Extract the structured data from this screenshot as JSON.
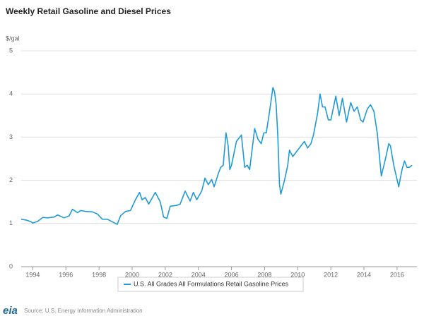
{
  "chart_data": {
    "type": "line",
    "title": "Weekly Retail Gasoline and Diesel Prices",
    "y_label": "$/gal",
    "source": "Source: U.S. Energy Information Administration",
    "logo": "eia",
    "grid": true,
    "xlim": [
      1993.3,
      2017.2
    ],
    "ylim": [
      0,
      5
    ],
    "xticks": [
      1994,
      1996,
      1998,
      2000,
      2002,
      2004,
      2006,
      2008,
      2010,
      2012,
      2014,
      2016
    ],
    "yticks": [
      0,
      1,
      2,
      3,
      4,
      5
    ],
    "x": [
      1993.3,
      1993.6,
      1993.9,
      1994.0,
      1994.3,
      1994.6,
      1994.9,
      1995.3,
      1995.5,
      1995.9,
      1996.2,
      1996.4,
      1996.7,
      1996.9,
      1997.2,
      1997.6,
      1997.9,
      1998.2,
      1998.5,
      1998.9,
      1999.1,
      1999.3,
      1999.6,
      1999.9,
      2000.2,
      2000.45,
      2000.6,
      2000.8,
      2001.0,
      2001.3,
      2001.4,
      2001.7,
      2001.9,
      2002.1,
      2002.3,
      2002.7,
      2002.9,
      2003.2,
      2003.5,
      2003.7,
      2003.9,
      2004.2,
      2004.4,
      2004.6,
      2004.8,
      2004.95,
      2005.2,
      2005.35,
      2005.5,
      2005.67,
      2005.8,
      2005.9,
      2006.0,
      2006.3,
      2006.6,
      2006.8,
      2006.95,
      2007.1,
      2007.4,
      2007.6,
      2007.8,
      2007.95,
      2008.1,
      2008.3,
      2008.5,
      2008.6,
      2008.7,
      2008.8,
      2008.9,
      2008.98,
      2009.2,
      2009.4,
      2009.5,
      2009.7,
      2009.9,
      2010.2,
      2010.4,
      2010.6,
      2010.8,
      2010.95,
      2011.2,
      2011.35,
      2011.5,
      2011.65,
      2011.85,
      2012.0,
      2012.3,
      2012.5,
      2012.7,
      2012.95,
      2013.2,
      2013.4,
      2013.6,
      2013.8,
      2013.95,
      2014.2,
      2014.4,
      2014.6,
      2014.8,
      2014.95,
      2015.05,
      2015.3,
      2015.5,
      2015.6,
      2015.8,
      2015.95,
      2016.1,
      2016.3,
      2016.45,
      2016.6,
      2016.75,
      2016.9
    ],
    "series": [
      {
        "name": "U.S. All Grades All Formulations Retail Gasoline Prices",
        "color": "#1f9ad6",
        "values": [
          1.1,
          1.08,
          1.04,
          1.01,
          1.05,
          1.14,
          1.13,
          1.15,
          1.2,
          1.13,
          1.18,
          1.33,
          1.25,
          1.3,
          1.28,
          1.27,
          1.22,
          1.1,
          1.1,
          1.02,
          0.98,
          1.18,
          1.28,
          1.3,
          1.55,
          1.72,
          1.55,
          1.6,
          1.45,
          1.65,
          1.72,
          1.5,
          1.15,
          1.12,
          1.4,
          1.42,
          1.45,
          1.75,
          1.52,
          1.72,
          1.55,
          1.75,
          2.05,
          1.9,
          2.02,
          1.85,
          2.15,
          2.3,
          2.35,
          3.1,
          2.8,
          2.25,
          2.35,
          2.9,
          3.05,
          2.3,
          2.35,
          2.25,
          3.2,
          2.95,
          2.85,
          3.1,
          3.1,
          3.6,
          4.15,
          4.05,
          3.75,
          3.0,
          1.9,
          1.68,
          2.0,
          2.35,
          2.7,
          2.55,
          2.65,
          2.8,
          2.9,
          2.75,
          2.85,
          3.05,
          3.55,
          4.0,
          3.7,
          3.7,
          3.4,
          3.4,
          3.95,
          3.5,
          3.9,
          3.35,
          3.8,
          3.6,
          3.7,
          3.4,
          3.35,
          3.65,
          3.75,
          3.6,
          3.1,
          2.5,
          2.1,
          2.5,
          2.85,
          2.8,
          2.35,
          2.1,
          1.85,
          2.25,
          2.45,
          2.3,
          2.3,
          2.35
        ]
      }
    ]
  }
}
